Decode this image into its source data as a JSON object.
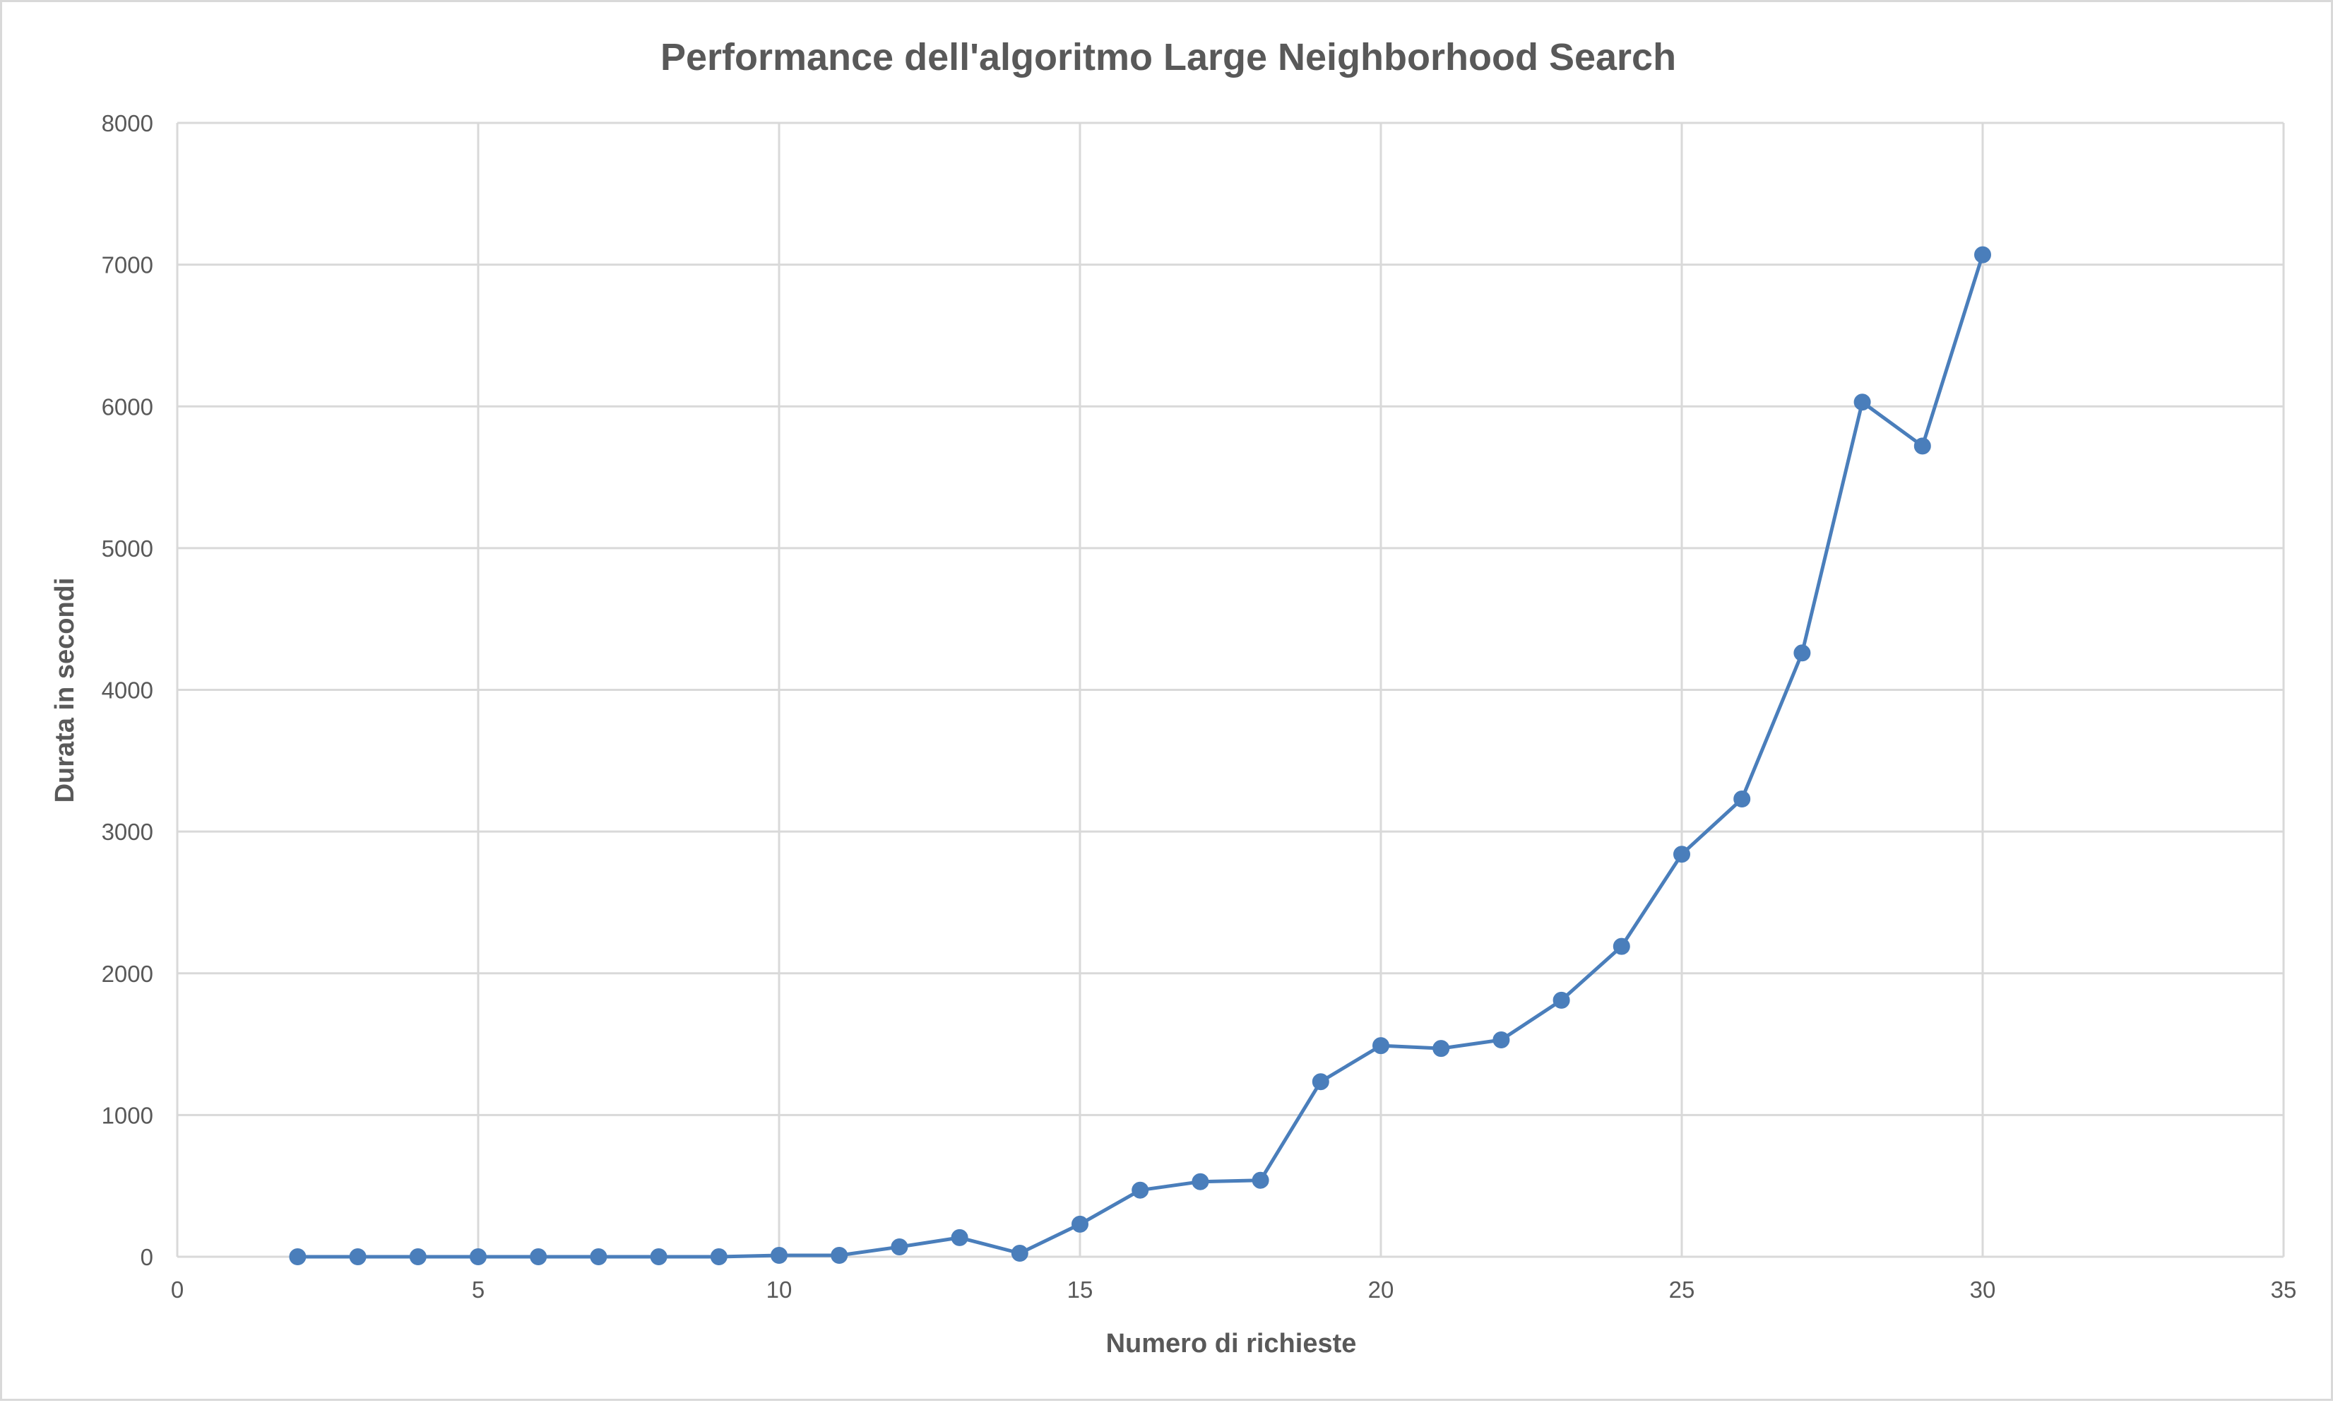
{
  "chart_data": {
    "type": "scatter",
    "title": "Performance dell'algoritmo Large Neighborhood Search",
    "xlabel": "Numero di richieste",
    "ylabel": "Durata in secondi",
    "xlim": [
      0,
      35
    ],
    "ylim": [
      0,
      8000
    ],
    "x_ticks": [
      "0",
      "5",
      "10",
      "15",
      "20",
      "25",
      "30",
      "35"
    ],
    "y_ticks": [
      "0",
      "1000",
      "2000",
      "3000",
      "4000",
      "5000",
      "6000",
      "7000",
      "8000"
    ],
    "grid": true,
    "legend": "none",
    "line_color": "#4a7ebb",
    "series": [
      {
        "x": [
          2,
          3,
          4,
          5,
          6,
          7,
          8,
          9,
          10,
          11,
          12,
          13,
          14,
          15,
          16,
          17,
          18,
          19,
          20,
          21,
          22,
          23,
          24,
          25,
          26,
          27,
          28,
          29,
          30
        ],
        "y": [
          0,
          0,
          0,
          0,
          0,
          0,
          0,
          0,
          10,
          10,
          70,
          135,
          25,
          230,
          470,
          530,
          540,
          1235,
          1490,
          1470,
          1530,
          1810,
          2190,
          2840,
          3230,
          4260,
          6030,
          5720,
          7070
        ]
      }
    ]
  }
}
